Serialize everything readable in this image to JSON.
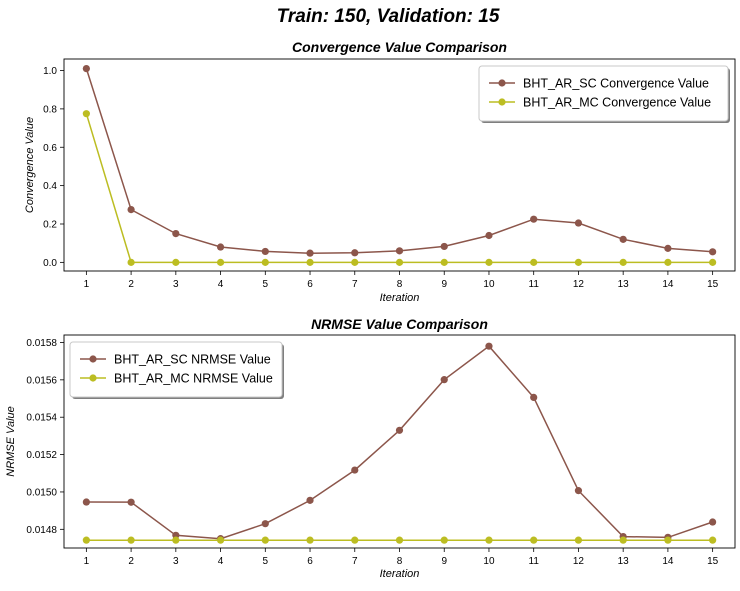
{
  "suptitle": "Train: 150,    Validation: 15",
  "colors": {
    "sc": "#8c564b",
    "mc": "#bcbd22",
    "axis": "#000000",
    "legend_border": "#c8c8c8"
  },
  "chart_data": [
    {
      "type": "line",
      "title": "Convergence Value Comparison",
      "xlabel": "Iteration",
      "ylabel": "Convergence Value",
      "x": [
        1,
        2,
        3,
        4,
        5,
        6,
        7,
        8,
        9,
        10,
        11,
        12,
        13,
        14,
        15
      ],
      "ylim": [
        -0.045,
        1.06
      ],
      "yticks": [
        0.0,
        0.2,
        0.4,
        0.6,
        0.8,
        1.0
      ],
      "ytick_labels": [
        "0.0",
        "0.2",
        "0.4",
        "0.6",
        "0.8",
        "1.0"
      ],
      "legend_loc": "top-right",
      "grid": false,
      "series": [
        {
          "name": "BHT_AR_SC Convergence Value",
          "color": "#8c564b",
          "values": [
            1.01,
            0.275,
            0.15,
            0.08,
            0.057,
            0.048,
            0.05,
            0.06,
            0.083,
            0.14,
            0.225,
            0.205,
            0.12,
            0.073,
            0.055
          ]
        },
        {
          "name": "BHT_AR_MC Convergence Value",
          "color": "#bcbd22",
          "values": [
            0.775,
            0.0,
            0.0,
            0.0,
            0.0,
            0.0,
            0.0,
            0.0,
            0.0,
            0.0,
            0.0,
            0.0,
            0.0,
            0.0,
            0.0
          ]
        }
      ]
    },
    {
      "type": "line",
      "title": "NRMSE Value Comparison",
      "xlabel": "Iteration",
      "ylabel": "NRMSE Value",
      "x": [
        1,
        2,
        3,
        4,
        5,
        6,
        7,
        8,
        9,
        10,
        11,
        12,
        13,
        14,
        15
      ],
      "ylim": [
        0.0147,
        0.01584
      ],
      "yticks": [
        0.0148,
        0.015,
        0.0152,
        0.0154,
        0.0156,
        0.0158
      ],
      "ytick_labels": [
        "0.0148",
        "0.0150",
        "0.0152",
        "0.0154",
        "0.0156",
        "0.0158"
      ],
      "legend_loc": "top-left",
      "grid": false,
      "series": [
        {
          "name": "BHT_AR_SC NRMSE Value",
          "color": "#8c564b",
          "values": [
            0.014946,
            0.014945,
            0.014768,
            0.01475,
            0.01483,
            0.014955,
            0.015117,
            0.01533,
            0.015601,
            0.01578,
            0.015506,
            0.015007,
            0.014761,
            0.014757,
            0.014839
          ]
        },
        {
          "name": "BHT_AR_MC NRMSE Value",
          "color": "#bcbd22",
          "values": [
            0.014742,
            0.014742,
            0.014742,
            0.014742,
            0.014742,
            0.014742,
            0.014742,
            0.014742,
            0.014742,
            0.014742,
            0.014742,
            0.014742,
            0.014742,
            0.014742,
            0.014742
          ]
        }
      ]
    }
  ]
}
